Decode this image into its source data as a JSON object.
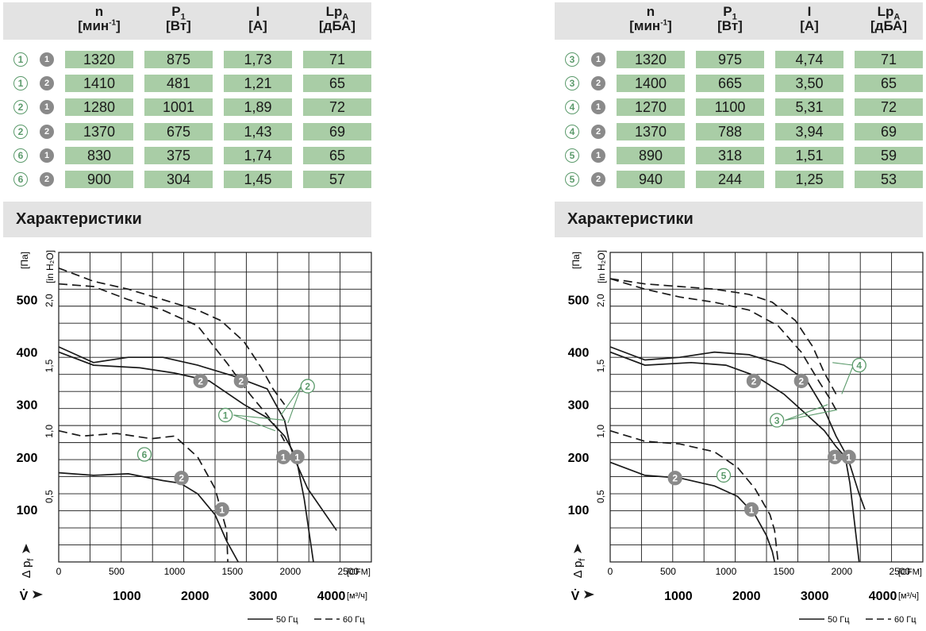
{
  "header": {
    "columns": [
      {
        "symbol": "n",
        "sub": "",
        "unit_pre": "[мин",
        "unit_sup": "-1",
        "unit_post": "]"
      },
      {
        "symbol": "P",
        "sub": "1",
        "unit_pre": "[Вт]",
        "unit_sup": "",
        "unit_post": ""
      },
      {
        "symbol": "I",
        "sub": "",
        "unit_pre": "[A]",
        "unit_sup": "",
        "unit_post": ""
      },
      {
        "symbol": "Lp",
        "sub": "A",
        "unit_pre": "[дБА]",
        "unit_sup": "",
        "unit_post": ""
      }
    ]
  },
  "section_title": "Характеристики",
  "colors": {
    "header_bg": "#e3e3e3",
    "cell_green": "#a9cda6",
    "marker_grey": "#8a8a8a",
    "label_green": "#5b9a6b"
  },
  "panels": [
    {
      "rows": [
        {
          "curve": "1",
          "point": "1",
          "n": "1320",
          "p1": "875",
          "i": "1,73",
          "lpa": "71"
        },
        {
          "curve": "1",
          "point": "2",
          "n": "1410",
          "p1": "481",
          "i": "1,21",
          "lpa": "65"
        },
        {
          "curve": "2",
          "point": "1",
          "n": "1280",
          "p1": "1001",
          "i": "1,89",
          "lpa": "72"
        },
        {
          "curve": "2",
          "point": "2",
          "n": "1370",
          "p1": "675",
          "i": "1,43",
          "lpa": "69"
        },
        {
          "curve": "6",
          "point": "1",
          "n": "830",
          "p1": "375",
          "i": "1,74",
          "lpa": "65"
        },
        {
          "curve": "6",
          "point": "2",
          "n": "900",
          "p1": "304",
          "i": "1,45",
          "lpa": "57"
        }
      ],
      "chart_data": {
        "type": "line",
        "x_unit_top": "[CFM]",
        "x_unit_bottom": "[м³/ч]",
        "x_ticks_cfm": [
          "0",
          "500",
          "1000",
          "1500",
          "2000",
          "2500"
        ],
        "x_ticks_m3h": [
          "1000",
          "2000",
          "3000",
          "4000"
        ],
        "y_unit_pa": "[Па]",
        "y_unit_inh2o": "[in H₂O]",
        "y_ticks_pa": [
          "100",
          "200",
          "300",
          "400",
          "500"
        ],
        "y_ticks_inh2o": [
          "0,5",
          "1,0",
          "1,5",
          "2,0"
        ],
        "y_axis_label": "Δ p",
        "y_axis_sub": "f",
        "x_axis_label": "V̇",
        "xlim_cfm": [
          0,
          2700
        ],
        "ylim_pa": [
          0,
          590
        ],
        "legend": {
          "solid": "50 Гц",
          "dashed": "60 Гц"
        },
        "series": [
          {
            "curve": "1",
            "freq": "50",
            "x": [
              0,
              300,
              700,
              1000,
              1300,
              1600,
              1800,
              1950,
              2050,
              2120,
              2200
            ],
            "y": [
              400,
              375,
              370,
              360,
              345,
              300,
              275,
              240,
              200,
              120,
              0
            ]
          },
          {
            "curve": "2",
            "freq": "50",
            "x": [
              0,
              300,
              600,
              900,
              1200,
              1500,
              1800,
              1950,
              2000,
              2050,
              2150,
              2400
            ],
            "y": [
              410,
              380,
              390,
              390,
              375,
              355,
              330,
              270,
              220,
              190,
              140,
              60
            ]
          },
          {
            "curve": "1",
            "freq": "60",
            "x": [
              0,
              300,
              600,
              900,
              1200,
              1450,
              1650,
              1800,
              1900,
              1950
            ],
            "y": [
              530,
              525,
              500,
              480,
              450,
              380,
              320,
              280,
              250,
              230
            ]
          },
          {
            "curve": "2",
            "freq": "60",
            "x": [
              0,
              300,
              600,
              900,
              1200,
              1400,
              1600,
              1750,
              1850,
              1950
            ],
            "y": [
              560,
              535,
              520,
              500,
              480,
              460,
              420,
              370,
              330,
              300
            ]
          },
          {
            "curve": "6",
            "freq": "50",
            "x": [
              0,
              300,
              600,
              900,
              1050,
              1200,
              1350,
              1450,
              1550
            ],
            "y": [
              170,
              165,
              168,
              155,
              150,
              130,
              90,
              40,
              0
            ]
          },
          {
            "curve": "6",
            "freq": "60",
            "x": [
              0,
              200,
              500,
              800,
              1000,
              1200,
              1350,
              1400,
              1450,
              1460
            ],
            "y": [
              250,
              240,
              245,
              235,
              240,
              200,
              140,
              100,
              60,
              0
            ]
          }
        ],
        "markers": [
          {
            "kind": "point",
            "label": "2",
            "x": 1225,
            "y": 345
          },
          {
            "kind": "point",
            "label": "2",
            "x": 1575,
            "y": 345
          },
          {
            "kind": "point",
            "label": "1",
            "x": 1940,
            "y": 200
          },
          {
            "kind": "point",
            "label": "1",
            "x": 2060,
            "y": 200
          },
          {
            "kind": "point",
            "label": "2",
            "x": 1060,
            "y": 160
          },
          {
            "kind": "point",
            "label": "1",
            "x": 1410,
            "y": 100
          },
          {
            "kind": "curve",
            "label": "1",
            "x": 1440,
            "y": 280
          },
          {
            "kind": "curve",
            "label": "2",
            "x": 2150,
            "y": 335
          },
          {
            "kind": "curve",
            "label": "6",
            "x": 740,
            "y": 205
          }
        ],
        "leaders": [
          {
            "from": [
              1510,
              280
            ],
            "to": [
              1870,
              250
            ]
          },
          {
            "from": [
              1510,
              280
            ],
            "to": [
              1960,
              270
            ]
          },
          {
            "from": [
              2095,
              335
            ],
            "to": [
              1920,
              280
            ]
          },
          {
            "from": [
              2095,
              335
            ],
            "to": [
              1980,
              265
            ]
          }
        ]
      }
    },
    {
      "rows": [
        {
          "curve": "3",
          "point": "1",
          "n": "1320",
          "p1": "975",
          "i": "4,74",
          "lpa": "71"
        },
        {
          "curve": "3",
          "point": "2",
          "n": "1400",
          "p1": "665",
          "i": "3,50",
          "lpa": "65"
        },
        {
          "curve": "4",
          "point": "1",
          "n": "1270",
          "p1": "1100",
          "i": "5,31",
          "lpa": "72"
        },
        {
          "curve": "4",
          "point": "2",
          "n": "1370",
          "p1": "788",
          "i": "3,94",
          "lpa": "69"
        },
        {
          "curve": "5",
          "point": "1",
          "n": "890",
          "p1": "318",
          "i": "1,51",
          "lpa": "59"
        },
        {
          "curve": "5",
          "point": "2",
          "n": "940",
          "p1": "244",
          "i": "1,25",
          "lpa": "53"
        }
      ],
      "chart_data": {
        "type": "line",
        "x_unit_top": "[CFM]",
        "x_unit_bottom": "[м³/ч]",
        "x_ticks_cfm": [
          "0",
          "500",
          "1000",
          "1500",
          "2000",
          "2500"
        ],
        "x_ticks_m3h": [
          "1000",
          "2000",
          "3000",
          "4000"
        ],
        "y_unit_pa": "[Па]",
        "y_unit_inh2o": "[in H₂O]",
        "y_ticks_pa": [
          "100",
          "200",
          "300",
          "400",
          "500"
        ],
        "y_ticks_inh2o": [
          "0,5",
          "1,0",
          "1,5",
          "2,0"
        ],
        "y_axis_label": "Δ p",
        "y_axis_sub": "f",
        "x_axis_label": "V̇",
        "xlim_cfm": [
          0,
          2700
        ],
        "ylim_pa": [
          0,
          590
        ],
        "legend": {
          "solid": "50 Гц",
          "dashed": "60 Гц"
        },
        "series": [
          {
            "curve": "3",
            "freq": "50",
            "x": [
              0,
              300,
              700,
              1000,
              1250,
              1500,
              1700,
              1850,
              1950,
              2030,
              2070,
              2150
            ],
            "y": [
              400,
              375,
              380,
              375,
              355,
              320,
              280,
              250,
              220,
              200,
              150,
              0
            ]
          },
          {
            "curve": "4",
            "freq": "50",
            "x": [
              0,
              300,
              600,
              900,
              1200,
              1500,
              1700,
              1850,
              1950,
              2050,
              2150,
              2200
            ],
            "y": [
              410,
              385,
              390,
              400,
              395,
              375,
              345,
              290,
              240,
              200,
              130,
              100
            ]
          },
          {
            "curve": "3",
            "freq": "60",
            "x": [
              0,
              300,
              600,
              900,
              1200,
              1450,
              1650,
              1800,
              1900,
              1950
            ],
            "y": [
              540,
              520,
              505,
              495,
              480,
              450,
              400,
              345,
              310,
              290
            ]
          },
          {
            "curve": "4",
            "freq": "60",
            "x": [
              0,
              300,
              600,
              900,
              1200,
              1400,
              1600,
              1750,
              1850,
              1950
            ],
            "y": [
              540,
              530,
              525,
              520,
              510,
              495,
              460,
              410,
              360,
              320
            ]
          },
          {
            "curve": "5",
            "freq": "50",
            "x": [
              0,
              300,
              600,
              900,
              1100,
              1250,
              1350,
              1400,
              1420
            ],
            "y": [
              190,
              165,
              160,
              145,
              125,
              90,
              50,
              20,
              0
            ]
          },
          {
            "curve": "5",
            "freq": "60",
            "x": [
              0,
              300,
              600,
              900,
              1100,
              1250,
              1380,
              1420,
              1440,
              1450
            ],
            "y": [
              250,
              230,
              225,
              210,
              180,
              140,
              90,
              60,
              20,
              0
            ]
          }
        ],
        "markers": [
          {
            "kind": "point",
            "label": "2",
            "x": 1240,
            "y": 345
          },
          {
            "kind": "point",
            "label": "2",
            "x": 1650,
            "y": 345
          },
          {
            "kind": "point",
            "label": "1",
            "x": 1940,
            "y": 200
          },
          {
            "kind": "point",
            "label": "1",
            "x": 2060,
            "y": 200
          },
          {
            "kind": "point",
            "label": "2",
            "x": 560,
            "y": 160
          },
          {
            "kind": "point",
            "label": "1",
            "x": 1220,
            "y": 100
          },
          {
            "kind": "curve",
            "label": "3",
            "x": 1440,
            "y": 270
          },
          {
            "kind": "curve",
            "label": "4",
            "x": 2150,
            "y": 375
          },
          {
            "kind": "curve",
            "label": "5",
            "x": 980,
            "y": 165
          }
        ],
        "leaders": [
          {
            "from": [
              1510,
              270
            ],
            "to": [
              1880,
              300
            ]
          },
          {
            "from": [
              1510,
              270
            ],
            "to": [
              1960,
              290
            ]
          },
          {
            "from": [
              2100,
              375
            ],
            "to": [
              1920,
              380
            ]
          },
          {
            "from": [
              2100,
              375
            ],
            "to": [
              2000,
              320
            ]
          }
        ]
      }
    }
  ]
}
